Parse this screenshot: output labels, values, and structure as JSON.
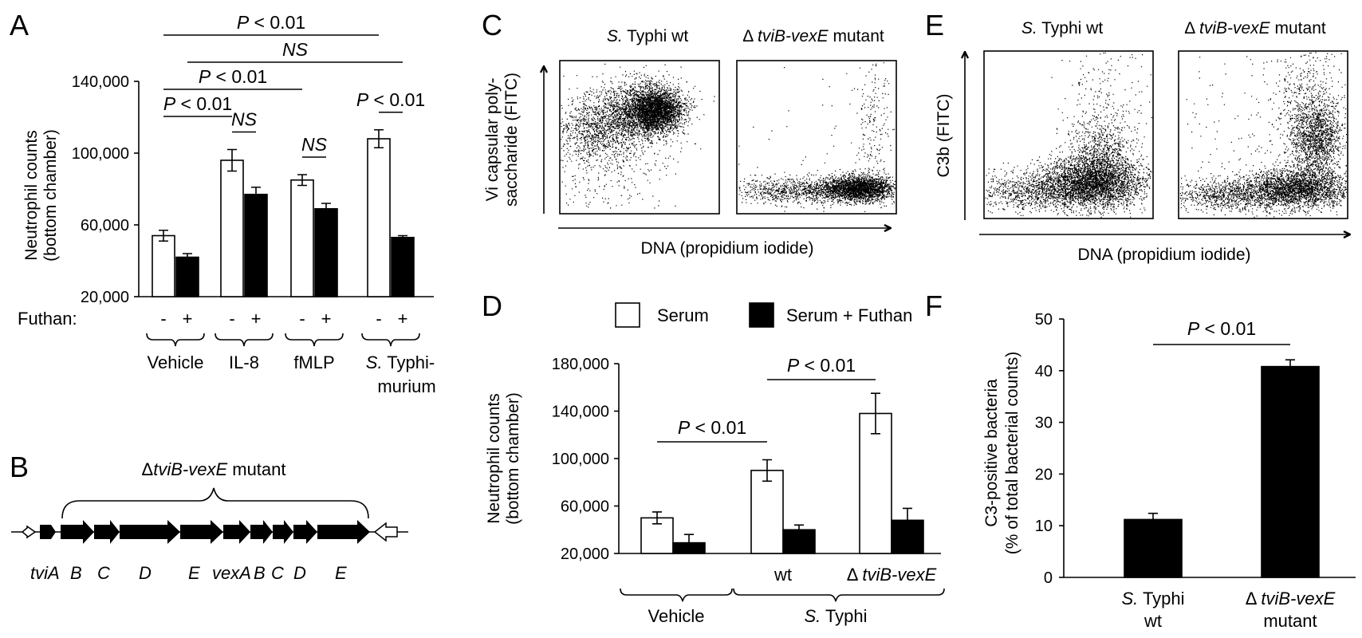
{
  "colors": {
    "serum": "#ffffff",
    "futhan": "#000000",
    "ink": "#000000"
  },
  "chart_data": [
    {
      "panel": "A",
      "type": "bar",
      "ylabel_line1": "Neutrophil counts",
      "ylabel_line2": "(bottom chamber)",
      "ylim": [
        20000,
        140000
      ],
      "yticks": [
        "20,000",
        "60,000",
        "100,000",
        "140,000"
      ],
      "categories": [
        "Vehicle",
        "IL-8",
        "fMLP",
        "S. Typhimurium"
      ],
      "category_labels": [
        {
          "italic": "",
          "line1": "Vehicle",
          "line2": ""
        },
        {
          "italic": "",
          "line1": "IL-8",
          "line2": ""
        },
        {
          "italic": "",
          "line1": "fMLP",
          "line2": ""
        },
        {
          "italic": "S.",
          "line1": " Typhi-",
          "line2": "murium"
        }
      ],
      "treatment_label": "Futhan:",
      "treatment_signs": [
        "-",
        "+"
      ],
      "series": [
        {
          "key": "minus",
          "values": [
            54000,
            96000,
            85000,
            108000
          ],
          "errors": [
            3000,
            6000,
            3000,
            5000
          ]
        },
        {
          "key": "plus",
          "values": [
            42000,
            77000,
            69000,
            53000
          ],
          "errors": [
            2000,
            4000,
            3000,
            1000
          ]
        }
      ],
      "comparisons": [
        {
          "text": "P < 0.01",
          "italic": "P",
          "rest": " < 0.01",
          "from": [
            0,
            "minus"
          ],
          "to": [
            1,
            "minus"
          ],
          "level": 0
        },
        {
          "text": "P < 0.01",
          "italic": "P",
          "rest": " < 0.01",
          "from": [
            0,
            "minus"
          ],
          "to": [
            2,
            "minus"
          ],
          "level": 1
        },
        {
          "text": "NS",
          "italic": "NS",
          "rest": "",
          "from": [
            0,
            "plus"
          ],
          "to": [
            3,
            "plus"
          ],
          "level": 2
        },
        {
          "text": "P < 0.01",
          "italic": "P",
          "rest": " < 0.01",
          "from": [
            0,
            "minus"
          ],
          "to": [
            3,
            "minus"
          ],
          "level": 3
        },
        {
          "text": "NS",
          "italic": "NS",
          "rest": "",
          "from": [
            1,
            "minus"
          ],
          "to": [
            1,
            "plus"
          ],
          "level": -1
        },
        {
          "text": "NS",
          "italic": "NS",
          "rest": "",
          "from": [
            2,
            "minus"
          ],
          "to": [
            2,
            "plus"
          ],
          "level": -1
        },
        {
          "text": "P < 0.01",
          "italic": "P",
          "rest": " < 0.01",
          "from": [
            3,
            "minus"
          ],
          "to": [
            3,
            "plus"
          ],
          "level": -1
        }
      ]
    },
    {
      "panel": "B",
      "type": "diagram",
      "title_prefix": "Δ",
      "title_italic": "tviB-vexE",
      "title_suffix": " mutant",
      "genes": [
        "tviA",
        "B",
        "C",
        "D",
        "E",
        "vexA",
        "B",
        "C",
        "D",
        "E"
      ]
    },
    {
      "panel": "C",
      "type": "scatter",
      "ylabel_line1": "Vi capsular poly-",
      "ylabel_line2": "saccharide (FITC)",
      "xlabel": "DNA (propidium iodide)",
      "plots": [
        {
          "italic": "S.",
          "title": " Typhi wt"
        },
        {
          "italic": "tviB-vexE",
          "title": " mutant",
          "prefix": "Δ "
        }
      ]
    },
    {
      "panel": "D",
      "type": "bar",
      "ylabel_line1": "Neutrophil counts",
      "ylabel_line2": "(bottom chamber)",
      "ylim": [
        20000,
        180000
      ],
      "yticks": [
        "20,000",
        "60,000",
        "100,000",
        "140,000",
        "180,000"
      ],
      "legend": [
        {
          "name": "Serum",
          "color": "#ffffff"
        },
        {
          "name": "Serum + Futhan",
          "color": "#000000"
        }
      ],
      "legend_position": "top",
      "categories": [
        "Vehicle",
        "wt",
        "ΔtviB-vexE"
      ],
      "sub_labels": [
        "",
        "wt",
        "tviB-vexE"
      ],
      "sub_prefix": "Δ ",
      "group_labels": [
        {
          "italic": "",
          "text": "Vehicle"
        },
        {
          "italic": "S.",
          "text": " Typhi"
        }
      ],
      "series": [
        {
          "name": "Serum",
          "values": [
            50000,
            90000,
            138000
          ],
          "errors": [
            5000,
            9000,
            17000
          ]
        },
        {
          "name": "Serum + Futhan",
          "values": [
            29000,
            40000,
            48000
          ],
          "errors": [
            7000,
            4000,
            10000
          ]
        }
      ],
      "comparisons": [
        {
          "text": "P < 0.01",
          "italic": "P",
          "rest": " < 0.01",
          "from": 0,
          "to": 1
        },
        {
          "text": "P < 0.01",
          "italic": "P",
          "rest": " < 0.01",
          "from": 1,
          "to": 2
        }
      ]
    },
    {
      "panel": "E",
      "type": "scatter",
      "ylabel_line1": "C3b (FITC)",
      "xlabel": "DNA (propidium iodide)",
      "plots": [
        {
          "italic": "S.",
          "title": " Typhi wt"
        },
        {
          "italic": "tviB-vexE",
          "title": " mutant",
          "prefix": "Δ "
        }
      ]
    },
    {
      "panel": "F",
      "type": "bar",
      "ylabel_line1": "C3-positive bacteria",
      "ylabel_line2": "(% of total bacterial counts)",
      "ylim": [
        0,
        50
      ],
      "yticks": [
        "0",
        "10",
        "20",
        "30",
        "40",
        "50"
      ],
      "categories": [
        "S. Typhi wt",
        "ΔtviB-vexE mutant"
      ],
      "category_labels": [
        {
          "italic": "S.",
          "line1": " Typhi",
          "line2": "wt"
        },
        {
          "italic": "tviB-vexE",
          "prefix": "Δ ",
          "line1": "",
          "line2": "mutant"
        }
      ],
      "values": [
        11.2,
        40.8
      ],
      "errors": [
        1.2,
        1.3
      ],
      "comparisons": [
        {
          "text": "P < 0.01",
          "italic": "P",
          "rest": " < 0.01",
          "from": 0,
          "to": 1
        }
      ]
    }
  ],
  "panel_letters": [
    "A",
    "B",
    "C",
    "D",
    "E",
    "F"
  ]
}
